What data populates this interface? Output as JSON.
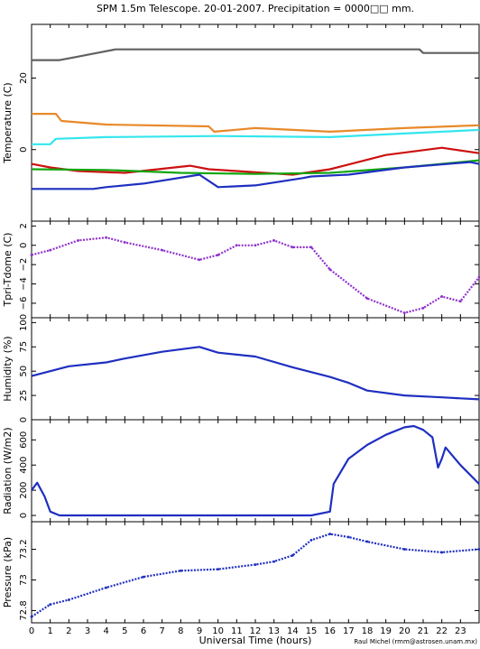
{
  "title": "SPM 1.5m Telescope. 20-01-2007. Precipitation = 0000□□ mm.",
  "xlabel": "Universal Time (hours)",
  "credit": "Raul Michel (rmm@astrosen.unam.mx)",
  "chart_data": [
    {
      "type": "line",
      "ylabel": "Temperature (C)",
      "xlim": [
        0,
        24
      ],
      "ylim": [
        -20,
        35
      ],
      "ticks": [
        0,
        20
      ],
      "series": [
        {
          "color": "#606060",
          "x": [
            0,
            1.5,
            2.5,
            3.5,
            4.5,
            5,
            7,
            10,
            15,
            20.8,
            21,
            24
          ],
          "y": [
            25,
            25,
            26,
            27,
            28,
            28,
            28,
            28,
            28,
            28,
            27,
            27
          ]
        },
        {
          "color": "#e8892a",
          "x": [
            0,
            1.3,
            1.6,
            4,
            9.5,
            9.8,
            12,
            16,
            20,
            24
          ],
          "y": [
            10,
            10,
            8,
            7,
            6.5,
            5,
            6,
            5,
            6,
            6.8
          ]
        },
        {
          "color": "#33e6ee",
          "x": [
            0,
            1,
            1.3,
            4,
            10,
            16,
            20,
            24
          ],
          "y": [
            1.5,
            1.5,
            3,
            3.5,
            3.8,
            3.5,
            4.5,
            5.5
          ]
        },
        {
          "color": "#cc1111",
          "x": [
            0,
            1,
            2.5,
            5,
            8.5,
            9.5,
            11,
            14,
            16,
            19,
            22,
            24
          ],
          "y": [
            -4,
            -5,
            -6,
            -6.5,
            -4.5,
            -5.5,
            -6,
            -7,
            -5.5,
            -1.5,
            0.5,
            -1
          ]
        },
        {
          "color": "#11a611",
          "x": [
            0,
            4,
            8,
            12,
            16,
            20,
            24
          ],
          "y": [
            -5.5,
            -5.7,
            -6.5,
            -6.8,
            -6.5,
            -5,
            -3
          ]
        },
        {
          "color": "#1f2fc0",
          "x": [
            0,
            3.3,
            4,
            6,
            9,
            10,
            12,
            14.5,
            15,
            17,
            20,
            23.5,
            24
          ],
          "y": [
            -11,
            -11,
            -10.5,
            -9.5,
            -7,
            -10.5,
            -10,
            -8,
            -7.5,
            -7,
            -5,
            -3.5,
            -4
          ]
        }
      ]
    },
    {
      "type": "scatter",
      "ylabel": "Tpri-Tdome (C)",
      "xlim": [
        0,
        24
      ],
      "ylim": [
        -7.5,
        2.5
      ],
      "ticks": [
        2,
        0,
        -2,
        -4,
        -6
      ],
      "series": [
        {
          "color": "#8e32cc",
          "x": [
            0,
            1,
            2.5,
            4,
            5,
            7,
            9,
            10,
            11,
            12,
            13,
            14,
            15,
            16,
            18,
            20,
            21,
            22,
            23,
            24
          ],
          "y": [
            -1,
            -0.5,
            0.5,
            0.8,
            0.3,
            -0.5,
            -1.5,
            -1,
            0,
            0,
            0.5,
            -0.2,
            -0.2,
            -2.5,
            -5.5,
            -7,
            -6.5,
            -5.3,
            -5.8,
            -3.3
          ]
        }
      ]
    },
    {
      "type": "line",
      "ylabel": "Humidity (%)",
      "xlim": [
        0,
        24
      ],
      "ylim": [
        0,
        105
      ],
      "ticks": [
        0,
        25,
        50,
        75,
        100
      ],
      "series": [
        {
          "color": "#1f2fc0",
          "x": [
            0,
            2,
            4,
            5,
            7,
            9,
            10,
            12,
            14,
            16,
            17,
            18,
            20,
            22,
            24
          ],
          "y": [
            45,
            55,
            59,
            63,
            70,
            75,
            69,
            65,
            54,
            44,
            38,
            30,
            25,
            23,
            21
          ]
        }
      ]
    },
    {
      "type": "line",
      "ylabel": "Radiation (W/m2)",
      "xlim": [
        0,
        24
      ],
      "ylim": [
        -50,
        760
      ],
      "ticks": [
        0,
        200,
        400,
        600
      ],
      "series": [
        {
          "color": "#1f2fc0",
          "x": [
            0,
            0.3,
            0.7,
            1,
            1.5,
            3,
            10,
            15,
            16,
            16.2,
            17,
            18,
            19,
            20,
            20.5,
            21,
            21.5,
            21.8,
            22,
            22.2,
            23,
            24
          ],
          "y": [
            200,
            260,
            150,
            30,
            0,
            0,
            0,
            0,
            30,
            250,
            450,
            560,
            640,
            700,
            710,
            680,
            620,
            380,
            450,
            540,
            400,
            250
          ]
        }
      ]
    },
    {
      "type": "scatter",
      "ylabel": "Pressure (kPa)",
      "xlim": [
        0,
        24
      ],
      "ylim": [
        72.72,
        73.38
      ],
      "ticks": [
        72.8,
        73,
        73.2
      ],
      "series": [
        {
          "color": "#1f2fc0",
          "x": [
            0,
            1,
            2,
            4,
            6,
            8,
            10,
            12,
            13,
            14,
            15,
            16,
            17,
            18,
            20,
            22,
            24
          ],
          "y": [
            72.76,
            72.84,
            72.87,
            72.95,
            73.02,
            73.06,
            73.07,
            73.1,
            73.12,
            73.16,
            73.26,
            73.3,
            73.28,
            73.25,
            73.2,
            73.18,
            73.2
          ]
        }
      ]
    }
  ],
  "x_ticks": [
    0,
    1,
    2,
    3,
    4,
    5,
    6,
    7,
    8,
    9,
    10,
    11,
    12,
    13,
    14,
    15,
    16,
    17,
    18,
    19,
    20,
    21,
    22,
    23
  ]
}
